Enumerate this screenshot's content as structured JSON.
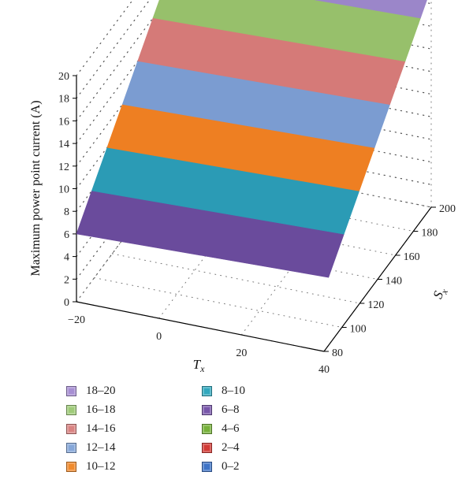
{
  "chart_data": {
    "type": "surface",
    "title": "",
    "zlabel": "Maximum power point current (A)",
    "xlabel": "T",
    "xlabel_sub": "x",
    "ylabel": "S",
    "ylabel_sub": "x",
    "x_ticks": [
      "−20",
      "0",
      "20",
      "40"
    ],
    "y_ticks": [
      "80",
      "100",
      "120",
      "140",
      "160",
      "180",
      "200"
    ],
    "z_ticks": [
      "0",
      "2",
      "4",
      "6",
      "8",
      "10",
      "12",
      "14",
      "16",
      "18",
      "20"
    ],
    "x_range": [
      -20,
      40
    ],
    "y_range": [
      80,
      200
    ],
    "z_range": [
      0,
      20
    ],
    "grid": true,
    "legend_position": "bottom-left",
    "bands": [
      {
        "name": "6–8",
        "from": 6,
        "to": 8,
        "color": "#6a4b9c"
      },
      {
        "name": "8–10",
        "from": 8,
        "to": 10,
        "color": "#2b9bb5"
      },
      {
        "name": "10–12",
        "from": 10,
        "to": 12,
        "color": "#ee7f22"
      },
      {
        "name": "12–14",
        "from": 12,
        "to": 14,
        "color": "#7b9cd1"
      },
      {
        "name": "14–16",
        "from": 14,
        "to": 16,
        "color": "#d57a78"
      },
      {
        "name": "16–18",
        "from": 16,
        "to": 18,
        "color": "#97c06b"
      },
      {
        "name": "18–20",
        "from": 18,
        "to": 20,
        "color": "#9b86c9"
      }
    ],
    "legend": [
      {
        "label": "18–20",
        "color": "#a78fd3"
      },
      {
        "label": "16–18",
        "color": "#9fcb79"
      },
      {
        "label": "14–16",
        "color": "#d98382"
      },
      {
        "label": "12–14",
        "color": "#86a7d9"
      },
      {
        "label": "10–12",
        "color": "#f08a2c"
      },
      {
        "label": "8–10",
        "color": "#32a8be"
      },
      {
        "label": "6–8",
        "color": "#7857aa"
      },
      {
        "label": "4–6",
        "color": "#76b13a"
      },
      {
        "label": "2–4",
        "color": "#d23a35"
      },
      {
        "label": "0–2",
        "color": "#3f74c7"
      }
    ]
  }
}
